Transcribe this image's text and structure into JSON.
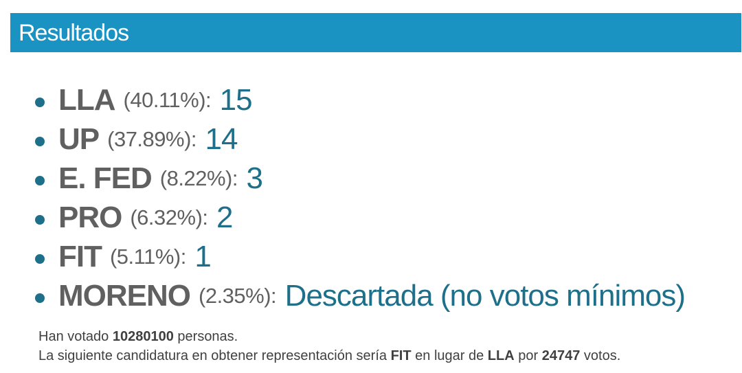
{
  "header": {
    "title": "Resultados",
    "background_color": "#1a93c3"
  },
  "results": [
    {
      "party": "LLA",
      "percentage": "(40.11%)",
      "seats": "15"
    },
    {
      "party": "UP",
      "percentage": "(37.89%)",
      "seats": "14"
    },
    {
      "party": "E. FED",
      "percentage": "(8.22%)",
      "seats": "3"
    },
    {
      "party": "PRO",
      "percentage": "(6.32%)",
      "seats": "2"
    },
    {
      "party": "FIT",
      "percentage": "(5.11%)",
      "seats": "1"
    },
    {
      "party": "MORENO",
      "percentage": "(2.35%)",
      "seats": "Descartada (no votos mínimos)"
    }
  ],
  "summary": {
    "line1_prefix": "Han votado",
    "voters": "10280100",
    "line1_suffix": "personas.",
    "line2_prefix": "La siguiente candidatura en obtener representación sería",
    "next_party": "FIT",
    "line2_middle": "en lugar de",
    "replaced_party": "LLA",
    "line2_by": "por",
    "vote_margin": "24747",
    "line2_suffix": "votos."
  },
  "colors": {
    "party_text": "#606060",
    "seats_text": "#1d6f8a",
    "bullet": "#1d6f8a"
  }
}
